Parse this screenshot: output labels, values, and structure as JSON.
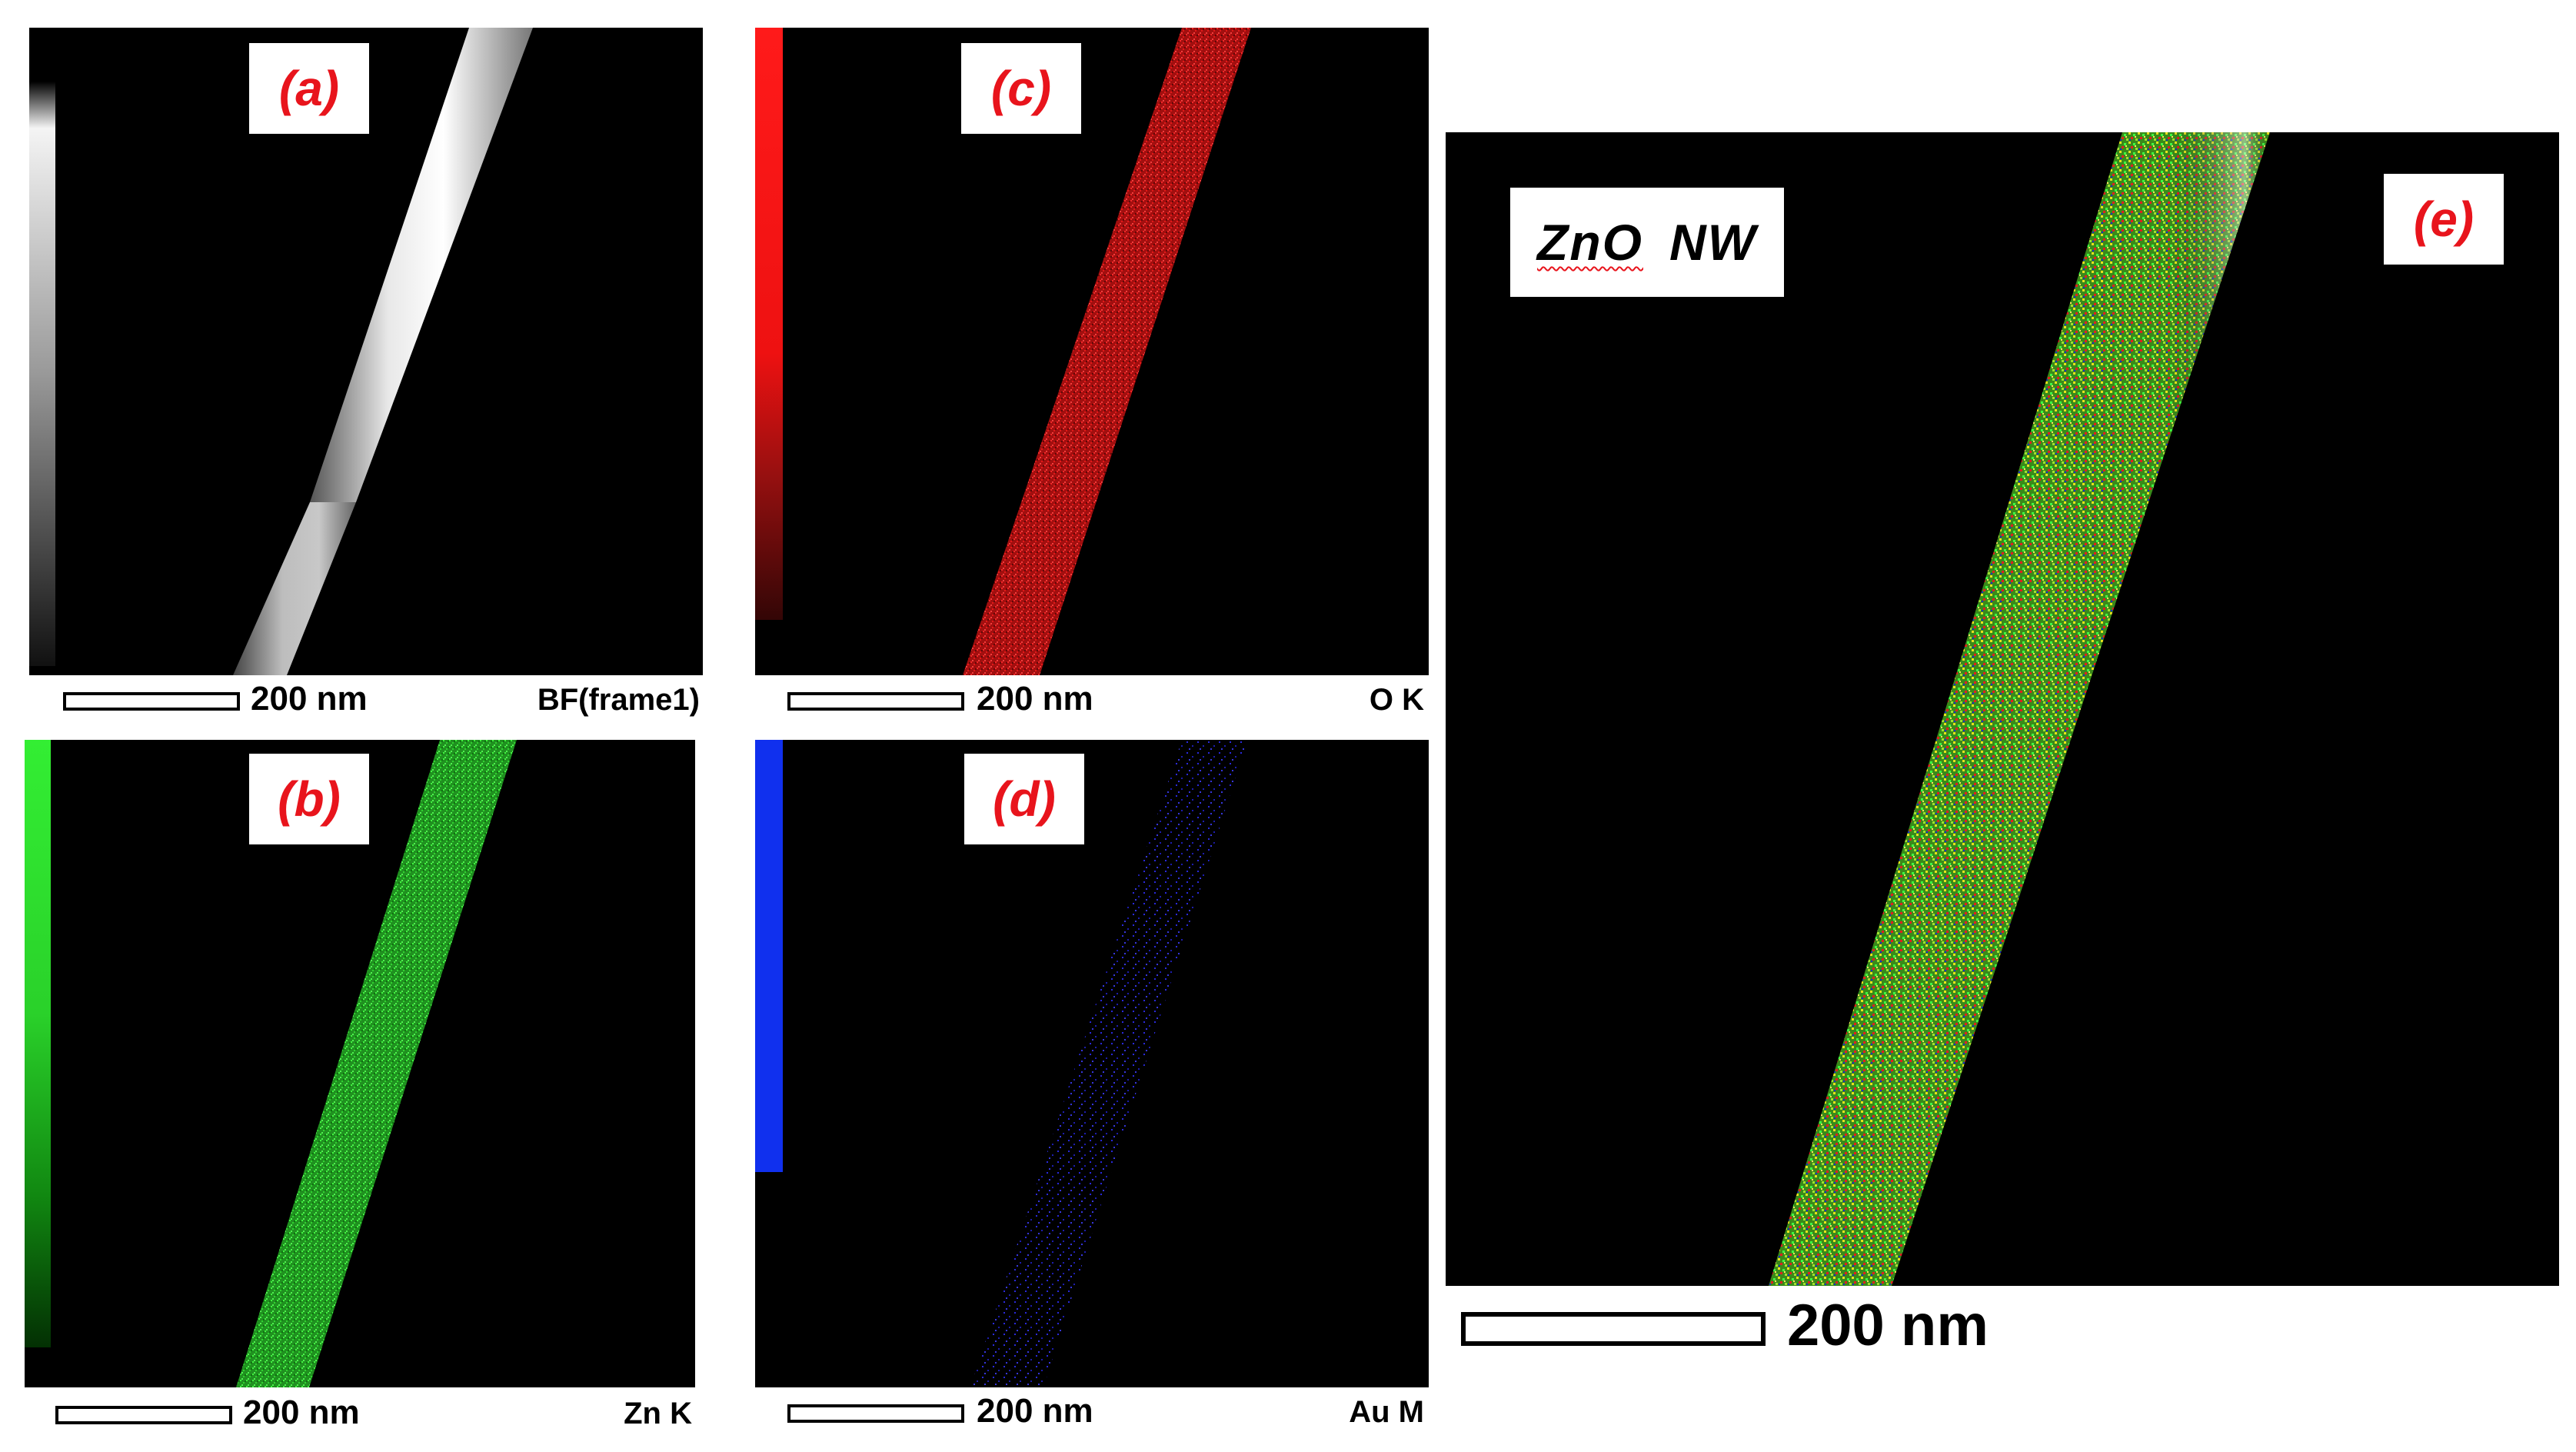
{
  "panels": {
    "a": {
      "label": "(a)",
      "scale": "200 nm",
      "caption": "BF(frame1)",
      "color": "#e6e6e6"
    },
    "b": {
      "label": "(b)",
      "scale": "200 nm",
      "caption": "Zn K",
      "color": "#33dd33"
    },
    "c": {
      "label": "(c)",
      "scale": "200 nm",
      "caption": "O K",
      "color": "#ee1a1a"
    },
    "d": {
      "label": "(d)",
      "scale": "200 nm",
      "caption": "Au M",
      "color": "#3030ff"
    },
    "e": {
      "label": "(e)",
      "title_part1": "ZnO",
      "title_part2": "NW",
      "scale": "200 nm"
    }
  },
  "colors": {
    "label_text": "#e8141c",
    "background": "#000000",
    "zn_map": "#33dd33",
    "o_map": "#ee1a1a",
    "au_map": "#3030ff"
  }
}
